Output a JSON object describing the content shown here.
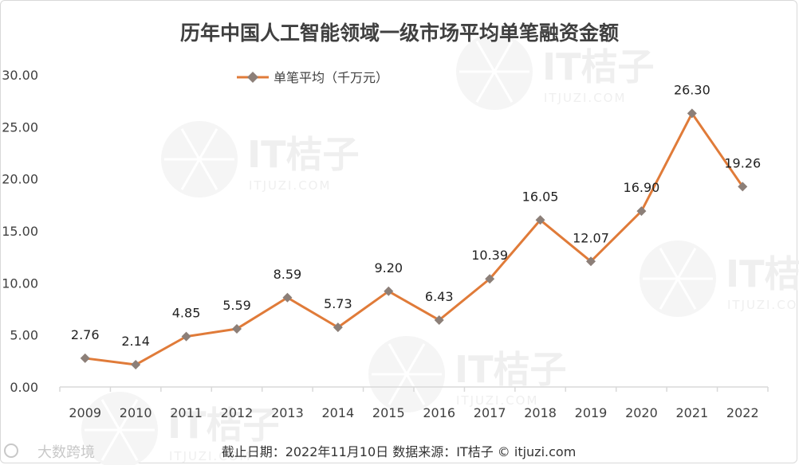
{
  "chart_data": {
    "type": "line",
    "title": "历年中国人工智能领域一级市场平均单笔融资金额",
    "categories": [
      "2009",
      "2010",
      "2011",
      "2012",
      "2013",
      "2014",
      "2015",
      "2016",
      "2017",
      "2018",
      "2019",
      "2020",
      "2021",
      "2022"
    ],
    "series": [
      {
        "name": "单笔平均（千万元）",
        "values": [
          2.76,
          2.14,
          4.85,
          5.59,
          8.59,
          5.73,
          9.2,
          6.43,
          10.39,
          16.05,
          12.07,
          16.9,
          26.3,
          19.26
        ],
        "labels": [
          "2.76",
          "2.14",
          "4.85",
          "5.59",
          "8.59",
          "5.73",
          "9.20",
          "6.43",
          "10.39",
          "16.05",
          "12.07",
          "16.90",
          "26.30",
          "19.26"
        ],
        "color": "#e07b39",
        "marker_color": "#8c7f78",
        "marker": "diamond"
      }
    ],
    "y_ticks": [
      "0.00",
      "5.00",
      "10.00",
      "15.00",
      "20.00",
      "25.00",
      "30.00"
    ],
    "ylim": [
      0,
      30
    ],
    "grid": false,
    "legend_position": "top-left"
  },
  "footer": {
    "text": "截止日期：2022年11月10日    数据来源：IT桔子 © itjuzi.com"
  },
  "brand": {
    "text": "大数跨境"
  },
  "watermark": {
    "text": "IT桔子",
    "sub": "ITJUZI.COM"
  },
  "colors": {
    "axis": "#d9d9d9",
    "text": "#404040"
  }
}
